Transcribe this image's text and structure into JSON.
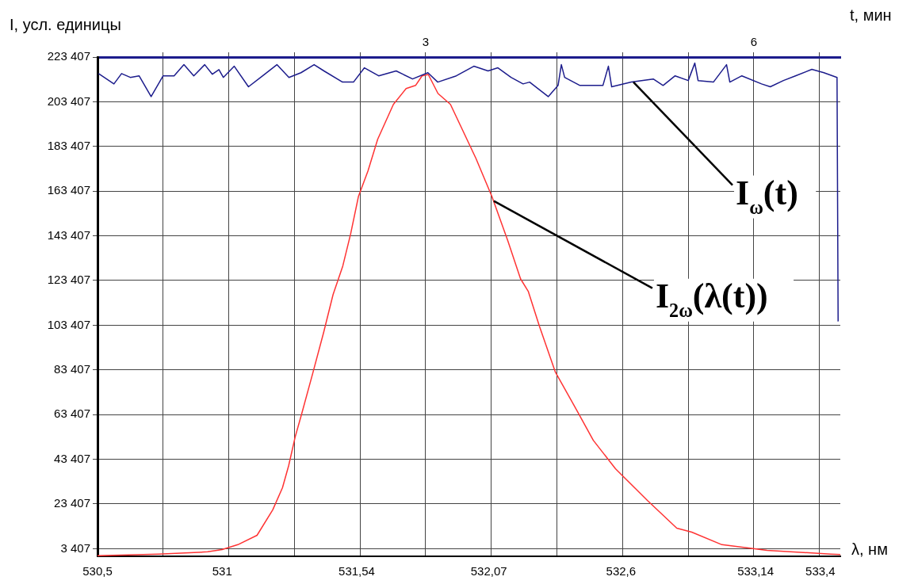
{
  "chart_data": {
    "type": "line",
    "ylabel": "I, усл. единицы",
    "xlabel": "λ, нм",
    "x2label": "t, мин",
    "xlim": [
      530.5,
      533.48
    ],
    "xticks": [
      {
        "value": 530.5,
        "label": "530,5"
      },
      {
        "value": 531,
        "label": "531"
      },
      {
        "value": 531.54,
        "label": "531,54"
      },
      {
        "value": 532.07,
        "label": "532,07"
      },
      {
        "value": 532.6,
        "label": "532,6"
      },
      {
        "value": 533.14,
        "label": "533,14"
      },
      {
        "value": 533.4,
        "label": "533,4"
      }
    ],
    "x2lim": [
      0,
      6.79
    ],
    "x2ticks": [
      {
        "value": 0.6,
        "label": null
      },
      {
        "value": 1.2,
        "label": null
      },
      {
        "value": 1.8,
        "label": null
      },
      {
        "value": 2.4,
        "label": null
      },
      3,
      {
        "value": 3.6,
        "label": null
      },
      {
        "value": 4.2,
        "label": null
      },
      {
        "value": 4.8,
        "label": null
      },
      {
        "value": 5.4,
        "label": null
      },
      6,
      {
        "value": 6.6,
        "label": null
      }
    ],
    "ylim": [
      0,
      223407
    ],
    "yticks": [
      {
        "value": 3407,
        "label": "3 407"
      },
      {
        "value": 23407,
        "label": "23 407"
      },
      {
        "value": 43407,
        "label": "43 407"
      },
      {
        "value": 63407,
        "label": "63 407"
      },
      {
        "value": 83407,
        "label": "83 407"
      },
      {
        "value": 103407,
        "label": "103 407"
      },
      {
        "value": 123407,
        "label": "123 407"
      },
      {
        "value": 143407,
        "label": "143 407"
      },
      {
        "value": 163407,
        "label": "163 407"
      },
      {
        "value": 183407,
        "label": "183 407"
      },
      {
        "value": 203407,
        "label": "203 407"
      },
      {
        "value": 223407,
        "label": "223 407"
      }
    ],
    "grid": true,
    "legend": false,
    "marker": "none",
    "line_style": "solid",
    "series": [
      {
        "color": "#1c1c8c",
        "axis": "x2",
        "x": [
          0.01,
          0.15,
          0.22,
          0.3,
          0.38,
          0.49,
          0.6,
          0.7,
          0.79,
          0.88,
          0.98,
          1.05,
          1.11,
          1.15,
          1.25,
          1.38,
          1.51,
          1.64,
          1.75,
          1.86,
          1.98,
          2.07,
          2.24,
          2.34,
          2.44,
          2.57,
          2.73,
          2.88,
          3.02,
          3.11,
          3.28,
          3.44,
          3.57,
          3.66,
          3.78,
          3.89,
          3.95,
          4.12,
          4.21,
          4.24,
          4.27,
          4.41,
          4.62,
          4.67,
          4.7,
          4.88,
          5.08,
          5.17,
          5.28,
          5.4,
          5.46,
          5.49,
          5.63,
          5.75,
          5.78,
          5.89,
          6.07,
          6.15,
          6.27,
          6.38,
          6.53,
          6.64,
          6.76,
          6.77
        ],
        "values": [
          216000,
          211400,
          216000,
          214300,
          215000,
          205700,
          215000,
          215000,
          220000,
          215000,
          220000,
          215700,
          217800,
          214300,
          219300,
          210100,
          215000,
          220000,
          214300,
          216400,
          220000,
          217200,
          212200,
          212200,
          218600,
          215000,
          217200,
          213600,
          216400,
          212200,
          215000,
          219300,
          217200,
          218600,
          214300,
          211400,
          212200,
          205700,
          210700,
          220000,
          214300,
          210700,
          210700,
          219300,
          210100,
          212200,
          213600,
          210700,
          215000,
          212900,
          220700,
          212900,
          212200,
          220000,
          212200,
          215000,
          211400,
          210100,
          212900,
          215000,
          217900,
          216400,
          214300,
          105100
        ]
      },
      {
        "color": "#ff3333",
        "x": [
          530.5,
          530.745,
          530.942,
          531.0,
          531.063,
          531.14,
          531.203,
          531.242,
          531.267,
          531.293,
          531.318,
          531.363,
          531.407,
          531.445,
          531.484,
          531.515,
          531.547,
          531.585,
          531.624,
          531.687,
          531.738,
          531.776,
          531.802,
          531.827,
          531.866,
          531.916,
          532.018,
          532.082,
          532.146,
          532.197,
          532.228,
          532.273,
          532.337,
          532.426,
          532.489,
          532.578,
          532.706,
          532.824,
          532.884,
          533.005,
          533.186,
          533.441,
          533.48
        ],
        "values": [
          300,
          1000,
          2000,
          3000,
          5200,
          9400,
          20800,
          30700,
          40600,
          53400,
          63300,
          81700,
          100100,
          117100,
          129900,
          144000,
          161100,
          172400,
          186600,
          202200,
          209300,
          210700,
          215000,
          215600,
          207100,
          202200,
          178100,
          161100,
          141200,
          124200,
          118600,
          102900,
          82400,
          64700,
          51900,
          39200,
          25000,
          12600,
          10800,
          5200,
          2700,
          1000,
          800
        ]
      }
    ],
    "annotations": [
      {
        "text": "I$_{ω}$(t)",
        "x": 532.65,
        "y": 212200
      },
      {
        "text": "I$_{2ω}$(λ(t))",
        "x": 532.09,
        "y": 159000
      }
    ]
  }
}
